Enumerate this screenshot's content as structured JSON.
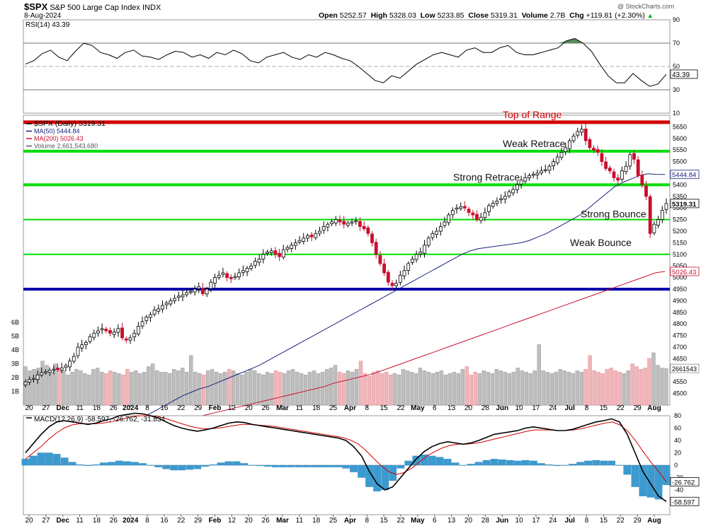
{
  "header": {
    "symbol": "$SPX",
    "name": "S&P 500 Large Cap Index",
    "exchange": "INDX",
    "date": "8-Aug-2024",
    "open_label": "Open",
    "open": "5252.57",
    "high_label": "High",
    "high": "5328.03",
    "low_label": "Low",
    "low": "5233.85",
    "close_label": "Close",
    "close": "5319.31",
    "volume_label": "Volume",
    "volume": "2.7B",
    "chg_label": "Chg",
    "chg": "+119.81 (+2.30%)",
    "chg_arrow": "▲",
    "watermark": "@ StockCharts.com"
  },
  "colors": {
    "up_candle": "#ffffff",
    "down_candle": "#c8102e",
    "ma50": "#1a237e",
    "ma200": "#c8102e",
    "top_of_range": "#d40000",
    "green_level": "#00dd00",
    "blue_level": "#0000aa",
    "rsi_fill": "#5a8a5a",
    "macd_hist": "#3b9bd1",
    "volume_up": "#bdbdbd",
    "volume_down": "#f0b5b9"
  },
  "chart_data": [
    {
      "type": "line",
      "panel": "RSI",
      "title": "RSI(14) 43.39",
      "series": [
        {
          "name": "RSI(14)",
          "values": [
            52,
            55,
            61,
            64,
            58,
            55,
            63,
            70,
            68,
            62,
            60,
            57,
            62,
            64,
            59,
            58,
            56,
            60,
            63,
            62,
            58,
            60,
            57,
            62,
            60,
            64,
            61,
            55,
            53,
            58,
            60,
            62,
            58,
            56,
            60,
            58,
            62,
            60,
            57,
            55,
            50,
            44,
            38,
            36,
            42,
            40,
            46,
            52,
            56,
            60,
            62,
            60,
            58,
            64,
            66,
            62,
            62,
            66,
            68,
            62,
            60,
            60,
            62,
            64,
            66,
            72,
            74,
            70,
            63,
            52,
            42,
            36,
            36,
            44,
            38,
            33,
            35,
            43.39
          ]
        }
      ],
      "last_value": "43.39",
      "ylim": [
        10,
        90
      ],
      "y_ticks": [
        "90",
        "70",
        "50",
        "30",
        "10"
      ],
      "levels": [
        70,
        30
      ]
    },
    {
      "type": "candlestick",
      "panel": "price",
      "title": "$SPX (Daily) 5319.31",
      "legend": [
        "$SPX (Daily) 5319.31",
        "MA(50) 5444.84",
        "MA(200) 5026.43",
        "Volume 2,661,543,680"
      ],
      "ylim": [
        4450,
        5700
      ],
      "y_ticks": [
        "5650",
        "5600",
        "5550",
        "5500",
        "5450",
        "5400",
        "5350",
        "5300",
        "5250",
        "5200",
        "5150",
        "5100",
        "5050",
        "5000",
        "4950",
        "4900",
        "4850",
        "4800",
        "4750",
        "4700",
        "4650",
        "4600",
        "4550",
        "4500"
      ],
      "price_tags": [
        {
          "label": "5444.84",
          "value": 5444.84,
          "color": "#1a237e"
        },
        {
          "label": "5319.31",
          "value": 5319.31,
          "color": "#000000"
        },
        {
          "label": "5026.43",
          "value": 5026.43,
          "color": "#c8102e"
        }
      ],
      "volume_ticks": [
        "6B",
        "5B",
        "4B",
        "3B",
        "2B",
        "1B"
      ],
      "volume_last": "2661543",
      "levels": [
        {
          "label": "Top of Range",
          "value": 5670,
          "color": "#d40000"
        },
        {
          "label": "Weak Retrace",
          "value": 5545,
          "color": "#00dd00"
        },
        {
          "label": "Strong Retrace",
          "value": 5400,
          "color": "#00dd00"
        },
        {
          "label": "Strong Bounce",
          "value": 5250,
          "color": "#00dd00"
        },
        {
          "label": "Weak Bounce",
          "value": 5100,
          "color": "#00dd00"
        },
        {
          "label": "",
          "value": 4950,
          "color": "#0000aa"
        }
      ],
      "closes": [
        4550,
        4560,
        4565,
        4580,
        4590,
        4594,
        4600,
        4605,
        4603,
        4610,
        4620,
        4640,
        4660,
        4700,
        4710,
        4720,
        4745,
        4760,
        4770,
        4780,
        4770,
        4760,
        4765,
        4780,
        4740,
        4730,
        4740,
        4760,
        4790,
        4810,
        4830,
        4840,
        4860,
        4865,
        4880,
        4890,
        4900,
        4910,
        4920,
        4925,
        4935,
        4940,
        4950,
        4960,
        4930,
        4950,
        4980,
        5000,
        5010,
        5020,
        5000,
        4995,
        5005,
        5020,
        5030,
        5040,
        5050,
        5070,
        5080,
        5100,
        5110,
        5115,
        5100,
        5090,
        5120,
        5130,
        5140,
        5150,
        5160,
        5170,
        5180,
        5175,
        5190,
        5200,
        5220,
        5230,
        5240,
        5250,
        5240,
        5230,
        5235,
        5240,
        5245,
        5220,
        5210,
        5190,
        5150,
        5100,
        5060,
        5020,
        4980,
        4965,
        4975,
        5010,
        5030,
        5060,
        5080,
        5100,
        5110,
        5140,
        5170,
        5190,
        5200,
        5220,
        5240,
        5270,
        5290,
        5300,
        5305,
        5300,
        5280,
        5270,
        5250,
        5260,
        5280,
        5310,
        5320,
        5330,
        5340,
        5350,
        5370,
        5380,
        5400,
        5420,
        5430,
        5440,
        5445,
        5450,
        5460,
        5465,
        5480,
        5500,
        5520,
        5540,
        5560,
        5590,
        5610,
        5630,
        5640,
        5590,
        5560,
        5550,
        5540,
        5500,
        5470,
        5460,
        5430,
        5420,
        5460,
        5480,
        5530,
        5510,
        5440,
        5400,
        5350,
        5190,
        5230,
        5250,
        5290,
        5319.31
      ],
      "ma50": [
        4370,
        4390,
        4410,
        4430,
        4450,
        4470,
        4490,
        4505,
        4520,
        4530,
        4545,
        4560,
        4575,
        4590,
        4605,
        4620,
        4640,
        4660,
        4680,
        4700,
        4720,
        4740,
        4760,
        4780,
        4800,
        4820,
        4840,
        4860,
        4880,
        4900,
        4920,
        4940,
        4960,
        4980,
        5000,
        5020,
        5040,
        5060,
        5080,
        5100,
        5115,
        5125,
        5130,
        5135,
        5140,
        5145,
        5150,
        5160,
        5175,
        5190,
        5210,
        5230,
        5250,
        5270,
        5300,
        5330,
        5360,
        5390,
        5410,
        5425,
        5440,
        5448,
        5445,
        5444.84
      ],
      "ma200": [
        4390,
        4400,
        4410,
        4420,
        4430,
        4440,
        4450,
        4460,
        4470,
        4480,
        4490,
        4500,
        4510,
        4520,
        4530,
        4545,
        4555,
        4565,
        4575,
        4585,
        4600,
        4615,
        4630,
        4645,
        4660,
        4675,
        4690,
        4705,
        4720,
        4735,
        4750,
        4765,
        4780,
        4795,
        4810,
        4825,
        4840,
        4855,
        4870,
        4885,
        4900,
        4915,
        4930,
        4945,
        4960,
        4975,
        4990,
        5005,
        5020,
        5026.43
      ],
      "volume_b": [
        2.8,
        2.5,
        2.6,
        2.7,
        3.2,
        2.9,
        2.4,
        3.0,
        2.6,
        2.5,
        2.2,
        2.4,
        2.6,
        2.5,
        2.3,
        2.2,
        2.6,
        2.7,
        2.4,
        2.3,
        2.5,
        2.4,
        2.3,
        2.2,
        2.6,
        2.4,
        2.5,
        2.3,
        2.4,
        2.8,
        3.0,
        2.5,
        2.4,
        2.4,
        2.3,
        2.6,
        2.5,
        2.7,
        2.4,
        3.6,
        2.4,
        2.3,
        2.2,
        2.5,
        2.6,
        2.4,
        2.3,
        2.4,
        2.6,
        2.5,
        2.3,
        2.2,
        2.4,
        2.6,
        2.5,
        2.3,
        2.2,
        2.4,
        2.3,
        2.5,
        2.4,
        2.3,
        2.5,
        2.6,
        2.4,
        2.3,
        2.2,
        2.4,
        2.5,
        2.3,
        2.4,
        2.6,
        2.7,
        2.9,
        2.4,
        2.3,
        2.5,
        2.4,
        2.6,
        3.2,
        2.3,
        2.1,
        2.4,
        2.5,
        2.3,
        2.4,
        2.2,
        2.3,
        2.2,
        2.6,
        2.5,
        2.4,
        2.3,
        2.7,
        2.5,
        2.4,
        2.3,
        2.4,
        2.5,
        2.2,
        2.3,
        2.4,
        2.3,
        2.6,
        2.8,
        2.2,
        2.4,
        2.3,
        2.5,
        2.4,
        2.3,
        2.6,
        2.5,
        2.4,
        2.3,
        2.4,
        2.7,
        2.5,
        2.4,
        2.3,
        2.5,
        4.4,
        2.5,
        2.4,
        2.3,
        2.4,
        2.6,
        2.5,
        2.4,
        2.3,
        2.5,
        2.4,
        2.6,
        3.6,
        2.5,
        2.4,
        2.3,
        2.6,
        2.7,
        2.5,
        2.4,
        2.3,
        2.5,
        3.0,
        2.8,
        2.6,
        2.7,
        3.4,
        3.8,
        2.9,
        2.7,
        2.66
      ]
    },
    {
      "type": "line",
      "panel": "MACD",
      "title": "MACD(12,26,9) -58.597, -26.762, -31.834",
      "series": [
        {
          "name": "MACD(12,26,9)",
          "values": [
            20,
            35,
            50,
            62,
            70,
            72,
            70,
            68,
            66,
            68,
            72,
            75,
            80,
            82,
            84,
            83,
            80,
            76,
            70,
            64,
            60,
            57,
            55,
            57,
            60,
            64,
            68,
            70,
            69,
            66,
            64,
            62,
            60,
            58,
            56,
            54,
            52,
            50,
            48,
            46,
            44,
            40,
            30,
            15,
            -10,
            -30,
            -40,
            -35,
            -20,
            -5,
            10,
            22,
            30,
            35,
            38,
            36,
            34,
            36,
            40,
            45,
            50,
            52,
            54,
            56,
            60,
            62,
            60,
            58,
            56,
            56,
            58,
            62,
            66,
            70,
            72,
            75,
            70,
            50,
            20,
            -10,
            -30,
            -50,
            -58.597
          ]
        },
        {
          "name": "signal",
          "values": [
            10,
            20,
            30,
            42,
            52,
            60,
            65,
            67,
            67,
            67,
            68,
            70,
            73,
            76,
            79,
            80,
            80,
            79,
            76,
            72,
            68,
            64,
            61,
            59,
            59,
            60,
            62,
            64,
            66,
            66,
            65,
            64,
            63,
            61,
            59,
            57,
            55,
            53,
            51,
            49,
            47,
            45,
            41,
            35,
            25,
            12,
            0,
            -10,
            -15,
            -12,
            -5,
            5,
            15,
            22,
            28,
            32,
            34,
            34,
            35,
            37,
            40,
            43,
            46,
            49,
            52,
            55,
            57,
            57,
            57,
            56,
            56,
            57,
            59,
            62,
            65,
            68,
            70,
            65,
            55,
            40,
            22,
            5,
            -10,
            -26.762
          ]
        }
      ],
      "histogram": [
        10,
        15,
        20,
        20,
        18,
        12,
        5,
        1,
        -1,
        1,
        4,
        5,
        7,
        6,
        5,
        3,
        0,
        -3,
        -6,
        -8,
        -8,
        -7,
        -6,
        -2,
        1,
        4,
        6,
        6,
        3,
        0,
        -1,
        -2,
        -3,
        -3,
        -3,
        -3,
        -3,
        -3,
        -3,
        -3,
        -3,
        -5,
        -11,
        -20,
        -35,
        -42,
        -40,
        -25,
        -5,
        7,
        15,
        17,
        15,
        13,
        10,
        4,
        0,
        2,
        5,
        8,
        10,
        9,
        8,
        7,
        8,
        7,
        3,
        1,
        -1,
        0,
        2,
        5,
        7,
        8,
        7,
        7,
        0,
        -15,
        -35,
        -50,
        -52,
        -55,
        -31.834
      ],
      "ylim": [
        -80,
        80
      ],
      "y_ticks": [
        "80",
        "60",
        "40",
        "20",
        "0",
        "-20",
        "-40"
      ],
      "value_tags": [
        {
          "label": "-26.762",
          "value": -26.762
        },
        {
          "label": "-58.597",
          "value": -58.597
        }
      ]
    }
  ],
  "x_axis": {
    "labels": [
      "20",
      "27",
      "Dec",
      "11",
      "18",
      "26",
      "2024",
      "8",
      "16",
      "22",
      "29",
      "Feb",
      "12",
      "20",
      "26",
      "Mar",
      "11",
      "18",
      "25",
      "Apr",
      "8",
      "15",
      "22",
      "May",
      "6",
      "13",
      "20",
      "28",
      "Jun",
      "10",
      "17",
      "24",
      "Jul",
      "8",
      "15",
      "22",
      "29",
      "Aug"
    ],
    "bold": [
      "Dec",
      "2024",
      "Feb",
      "Mar",
      "Apr",
      "May",
      "Jun",
      "Jul",
      "Aug"
    ]
  }
}
